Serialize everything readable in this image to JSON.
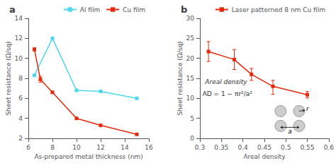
{
  "chart_data": [
    {
      "type": "line",
      "title": "a",
      "xlabel": "As-prepared metal thickness (nm)",
      "ylabel": "Sheet resistance (Ω/sq)",
      "series": [
        {
          "name": "Al film",
          "color": "#4DD9EC",
          "marker": "square",
          "x": [
            6.5,
            8,
            10,
            12,
            15
          ],
          "values": [
            8.3,
            12.0,
            6.8,
            6.7,
            6.0
          ]
        },
        {
          "name": "Cu film",
          "color": "#E8280A",
          "marker": "square",
          "x": [
            6.5,
            7,
            8,
            10,
            12,
            15
          ],
          "values": [
            10.9,
            7.9,
            6.6,
            4.0,
            3.3,
            2.4
          ],
          "error_lo": [
            0.15,
            0.3,
            0.0,
            0.0,
            0.0,
            0.0
          ],
          "error_hi": [
            0.15,
            0.3,
            0.0,
            0.0,
            0.0,
            0.0
          ]
        }
      ],
      "xlim": [
        6,
        16
      ],
      "ylim": [
        2,
        14
      ],
      "xticks": [
        6,
        8,
        10,
        12,
        14,
        16
      ],
      "yticks": [
        2,
        4,
        6,
        8,
        10,
        12,
        14
      ],
      "legend": "upper right",
      "grid": false
    },
    {
      "type": "line",
      "title": "b",
      "xlabel": "Areal density",
      "ylabel": "Sheet resistance (Ω/sq)",
      "series": [
        {
          "name": "Laser patterned 8 nm Cu film",
          "color": "#E8280A",
          "marker": "square",
          "x": [
            0.32,
            0.38,
            0.42,
            0.47,
            0.55
          ],
          "values": [
            21.7,
            19.7,
            16.0,
            13.0,
            10.9
          ],
          "error_lo": [
            2.5,
            2.5,
            1.5,
            2.0,
            0.8
          ],
          "error_hi": [
            2.5,
            2.5,
            1.5,
            1.5,
            0.8
          ]
        }
      ],
      "xlim": [
        0.3,
        0.6
      ],
      "ylim": [
        0,
        30
      ],
      "xticks": [
        0.3,
        0.35,
        0.4,
        0.45,
        0.5,
        0.55,
        0.6
      ],
      "yticks": [
        0,
        5,
        10,
        15,
        20,
        25,
        30
      ],
      "legend": "upper right",
      "grid": false,
      "annotations": [
        "Areal density",
        "AD = 1 − πr²/a²",
        "r",
        "a"
      ]
    }
  ]
}
